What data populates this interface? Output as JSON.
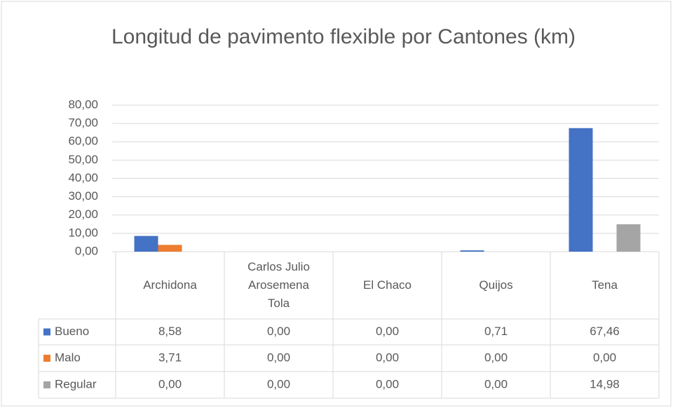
{
  "chart_data": {
    "type": "bar",
    "title": "Longitud de pavimento flexible por Cantones (km)",
    "categories": [
      "Archidona",
      "Carlos Julio Arosemena Tola",
      "El Chaco",
      "Quijos",
      "Tena"
    ],
    "series": [
      {
        "name": "Bueno",
        "color": "#4472c4",
        "values": [
          8.58,
          0,
          0,
          0.71,
          67.46
        ],
        "value_labels": [
          "8,58",
          "0,00",
          "0,00",
          "0,71",
          "67,46"
        ]
      },
      {
        "name": "Malo",
        "color": "#ed7d31",
        "values": [
          3.71,
          0,
          0,
          0,
          0
        ],
        "value_labels": [
          "3,71",
          "0,00",
          "0,00",
          "0,00",
          "0,00"
        ]
      },
      {
        "name": "Regular",
        "color": "#a5a5a5",
        "values": [
          0,
          0,
          0,
          0,
          14.98
        ],
        "value_labels": [
          "0,00",
          "0,00",
          "0,00",
          "0,00",
          "14,98"
        ]
      }
    ],
    "ylim": [
      0,
      80
    ],
    "yticks": [
      {
        "value": 0,
        "label": "0,00"
      },
      {
        "value": 10,
        "label": "10,00"
      },
      {
        "value": 20,
        "label": "20,00"
      },
      {
        "value": 30,
        "label": "30,00"
      },
      {
        "value": 40,
        "label": "40,00"
      },
      {
        "value": 50,
        "label": "50,00"
      },
      {
        "value": 60,
        "label": "60,00"
      },
      {
        "value": 70,
        "label": "70,00"
      },
      {
        "value": 80,
        "label": "80,00"
      }
    ],
    "grid": true
  }
}
